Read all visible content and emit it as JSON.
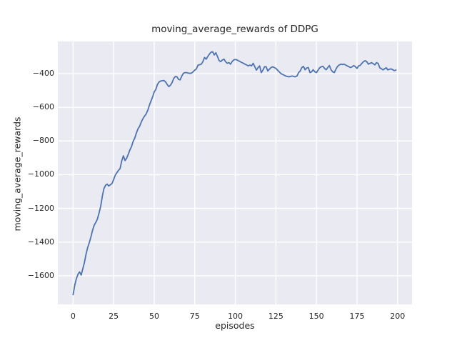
{
  "chart_data": {
    "type": "line",
    "title": "moving_average_rewards of DDPG",
    "xlabel": "episodes",
    "ylabel": "moving_average_rewards",
    "x_ticks": [
      {
        "label": "0",
        "value": 0
      },
      {
        "label": "25",
        "value": 25
      },
      {
        "label": "50",
        "value": 50
      },
      {
        "label": "75",
        "value": 75
      },
      {
        "label": "100",
        "value": 100
      },
      {
        "label": "125",
        "value": 125
      },
      {
        "label": "150",
        "value": 150
      },
      {
        "label": "175",
        "value": 175
      },
      {
        "label": "200",
        "value": 200
      }
    ],
    "y_ticks": [
      {
        "label": "−400",
        "value": -400
      },
      {
        "label": "−600",
        "value": -600
      },
      {
        "label": "−800",
        "value": -800
      },
      {
        "label": "−1000",
        "value": -1000
      },
      {
        "label": "−1200",
        "value": -1200
      },
      {
        "label": "−1400",
        "value": -1400
      },
      {
        "label": "−1600",
        "value": -1600
      }
    ],
    "xlim": [
      -9.4,
      208.9
    ],
    "ylim": [
      -1770,
      -209
    ],
    "grid": true,
    "legend": "none",
    "colors": {
      "figure_bg": "#FFFFFF",
      "plot_bg": "#EAEAF2",
      "grid": "#FFFFFF",
      "text": "#262626"
    },
    "series": [
      {
        "name": "moving_average_rewards",
        "color": "#4C72B0",
        "x_start": 0,
        "x_step": 1,
        "values": [
          -1712,
          -1658,
          -1618,
          -1592,
          -1577,
          -1596,
          -1558,
          -1520,
          -1472,
          -1432,
          -1403,
          -1368,
          -1330,
          -1300,
          -1283,
          -1263,
          -1228,
          -1188,
          -1128,
          -1083,
          -1063,
          -1056,
          -1067,
          -1060,
          -1052,
          -1028,
          -1003,
          -988,
          -974,
          -963,
          -918,
          -888,
          -916,
          -903,
          -879,
          -853,
          -833,
          -803,
          -783,
          -753,
          -728,
          -713,
          -688,
          -668,
          -653,
          -640,
          -618,
          -589,
          -563,
          -538,
          -508,
          -494,
          -464,
          -449,
          -444,
          -442,
          -441,
          -449,
          -464,
          -477,
          -469,
          -453,
          -429,
          -417,
          -419,
          -434,
          -437,
          -414,
          -398,
          -394,
          -394,
          -397,
          -399,
          -397,
          -389,
          -379,
          -372,
          -350,
          -347,
          -344,
          -329,
          -304,
          -314,
          -299,
          -284,
          -273,
          -270,
          -289,
          -276,
          -299,
          -322,
          -329,
          -319,
          -314,
          -329,
          -339,
          -334,
          -344,
          -329,
          -319,
          -316,
          -319,
          -324,
          -329,
          -334,
          -339,
          -344,
          -349,
          -354,
          -349,
          -354,
          -339,
          -359,
          -379,
          -364,
          -354,
          -394,
          -379,
          -359,
          -359,
          -384,
          -374,
          -364,
          -359,
          -364,
          -369,
          -379,
          -389,
          -399,
          -404,
          -409,
          -414,
          -417,
          -419,
          -417,
          -414,
          -417,
          -419,
          -414,
          -394,
          -384,
          -364,
          -357,
          -377,
          -367,
          -364,
          -394,
          -389,
          -377,
          -389,
          -394,
          -379,
          -365,
          -359,
          -357,
          -369,
          -377,
          -364,
          -352,
          -377,
          -389,
          -394,
          -374,
          -357,
          -349,
          -344,
          -346,
          -344,
          -349,
          -354,
          -359,
          -364,
          -359,
          -352,
          -359,
          -369,
          -354,
          -351,
          -339,
          -329,
          -323,
          -329,
          -344,
          -339,
          -335,
          -341,
          -348,
          -335,
          -339,
          -365,
          -371,
          -378,
          -371,
          -365,
          -378,
          -374,
          -372,
          -377,
          -382,
          -379
        ]
      }
    ]
  }
}
